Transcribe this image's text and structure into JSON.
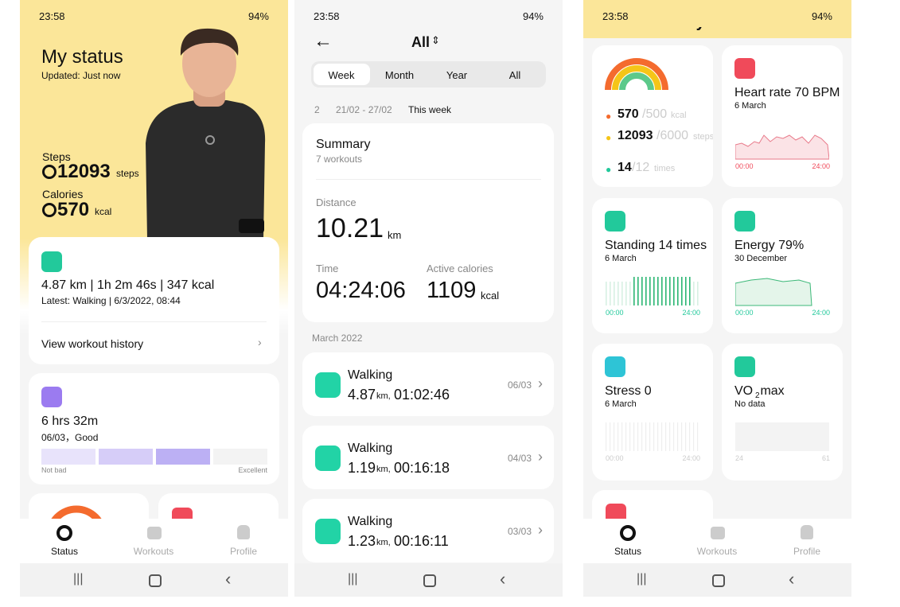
{
  "screens": [
    {
      "status_bar": {
        "time": "23:58",
        "battery": "94%"
      },
      "title": "My status",
      "updated": "Updated: Just now",
      "steps": {
        "label": "Steps",
        "value": "12093",
        "unit": "steps"
      },
      "calories": {
        "label": "Calories",
        "value": "570",
        "unit": "kcal"
      },
      "workout": {
        "summary": "4.87 km | 1h 2m 46s | 347 kcal",
        "latest": "Latest: Walking | 6/3/2022, 08:44",
        "link": "View workout history"
      },
      "sleep": {
        "duration": "6 hrs 32m",
        "date": "06/03，Good",
        "scale_low": "Not bad",
        "scale_high": "Excellent"
      },
      "nav": [
        "Status",
        "Workouts",
        "Profile"
      ]
    },
    {
      "status_bar": {
        "time": "23:58",
        "battery": "94%"
      },
      "header": "All",
      "tabs": [
        "Week",
        "Month",
        "Year",
        "All"
      ],
      "weeks": [
        "2",
        "21/02 - 27/02",
        "This week"
      ],
      "summary": {
        "title": "Summary",
        "count": "7 workouts",
        "distance_label": "Distance",
        "distance": "10.21",
        "distance_unit": "km",
        "time_label": "Time",
        "time": "04:24:06",
        "calories_label": "Active calories",
        "calories": "1109",
        "calories_unit": "kcal"
      },
      "month": "March 2022",
      "workouts": [
        {
          "name": "Walking",
          "distance": "4.87",
          "unit": "km,",
          "duration": "01:02:46",
          "date": "06/03"
        },
        {
          "name": "Walking",
          "distance": "1.19",
          "unit": "km,",
          "duration": "00:16:18",
          "date": "04/03"
        },
        {
          "name": "Walking",
          "distance": "1.23",
          "unit": "km,",
          "duration": "00:16:11",
          "date": "03/03"
        }
      ]
    },
    {
      "status_bar": {
        "time": "23:58",
        "battery": "94%"
      },
      "title": "My status",
      "rings": [
        {
          "value": "570",
          "goal": "/500",
          "unit": "kcal"
        },
        {
          "value": "12093",
          "goal": "/6000",
          "unit": "steps"
        },
        {
          "value": "14",
          "goal": "/12",
          "unit": "times"
        }
      ],
      "cards": [
        {
          "title": "Heart rate 70 BPM",
          "date": "6 March",
          "axis": [
            "00:00",
            "24:00"
          ]
        },
        {
          "title": "Standing 14 times",
          "date": "6 March",
          "axis": [
            "00:00",
            "24:00"
          ]
        },
        {
          "title": "Energy 79%",
          "date": "30 December",
          "axis": [
            "00:00",
            "24:00"
          ]
        },
        {
          "title": "Stress 0",
          "date": "6 March",
          "axis": [
            "00:00",
            "24:00"
          ]
        },
        {
          "title": "VO",
          "title_sub": "2",
          "title_rest": " max",
          "date": "No data",
          "axis": [
            "24",
            "61"
          ]
        }
      ],
      "nav": [
        "Status",
        "Workouts",
        "Profile"
      ]
    }
  ]
}
